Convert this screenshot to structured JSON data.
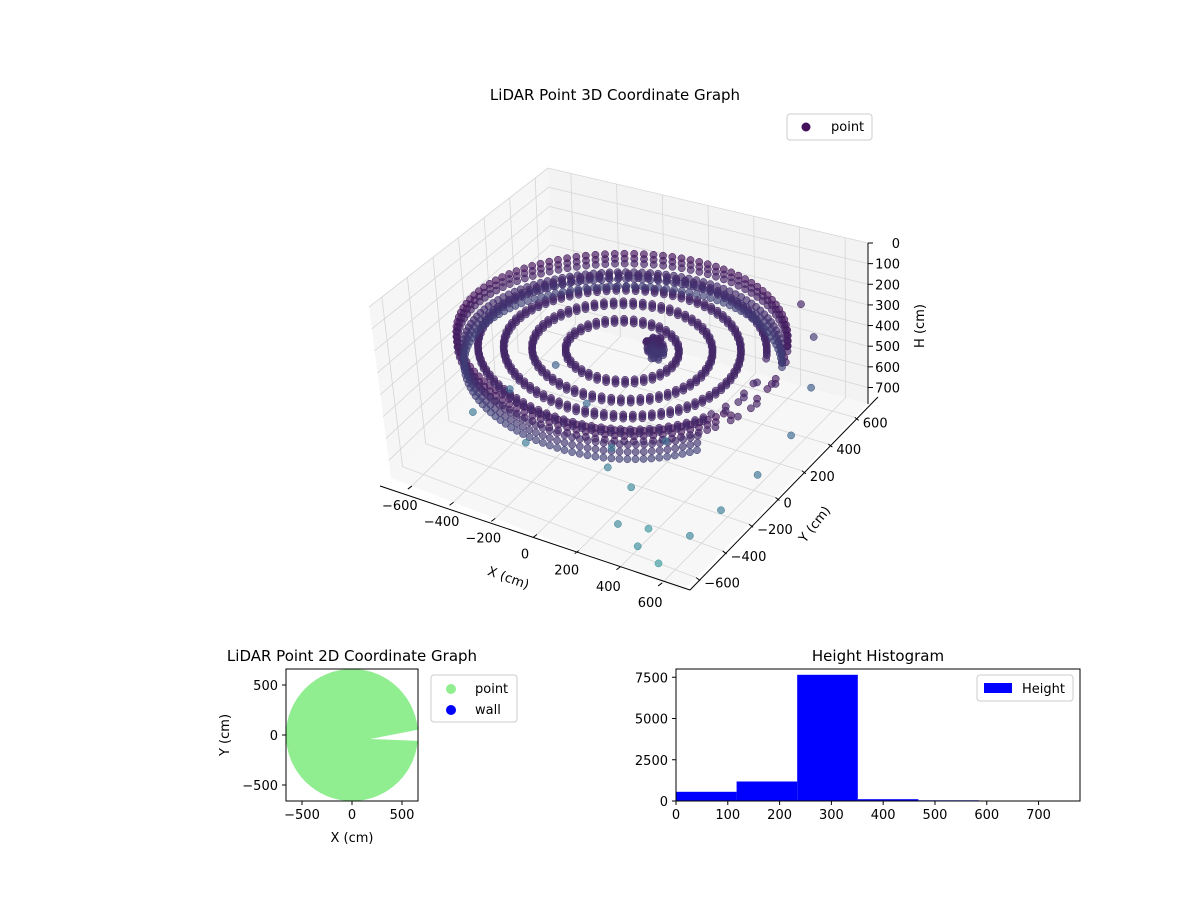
{
  "chart_data": [
    {
      "id": "chart3d",
      "type": "scatter",
      "title": "LiDAR Point 3D Coordinate Graph",
      "xlabel": "X (cm)",
      "ylabel": "Y (cm)",
      "zlabel": "H (cm)",
      "xlim": [
        -700,
        700
      ],
      "ylim": [
        -700,
        700
      ],
      "zlim": [
        0,
        780
      ],
      "z_inverted": true,
      "x_ticks": [
        -600,
        -400,
        -200,
        0,
        200,
        400,
        600
      ],
      "y_ticks": [
        -600,
        -400,
        -200,
        0,
        200,
        400,
        600
      ],
      "z_ticks": [
        0,
        100,
        200,
        300,
        400,
        500,
        600,
        700
      ],
      "grid": true,
      "legend": {
        "position": "top-right",
        "entries": [
          "point"
        ]
      },
      "colormap": "viridis-like by height",
      "colors": {
        "marker_dark": "#44125a",
        "marker_mid": "#3b5f8c",
        "marker_light": "#3b9aa0"
      },
      "series": [
        {
          "name": "point",
          "description_of_shape_note": "",
          "rings": [
            {
              "radius": 640,
              "h_min": 250,
              "h_max": 300,
              "angle_start": 0,
              "angle_end": 360
            },
            {
              "radius": 620,
              "h_min": 330,
              "h_max": 400,
              "angle_start": 30,
              "angle_end": 330
            },
            {
              "radius": 560,
              "h_min": 300,
              "h_max": 320,
              "angle_start": 0,
              "angle_end": 360
            },
            {
              "radius": 460,
              "h_min": 300,
              "h_max": 320,
              "angle_start": 0,
              "angle_end": 360
            },
            {
              "radius": 350,
              "h_min": 300,
              "h_max": 320,
              "angle_start": 0,
              "angle_end": 360
            },
            {
              "radius": 220,
              "h_min": 300,
              "h_max": 320,
              "angle_start": 0,
              "angle_end": 360
            }
          ],
          "outliers": [
            {
              "x": -520,
              "y": -300,
              "h": 620
            },
            {
              "x": -430,
              "y": -150,
              "h": 560
            },
            {
              "x": -330,
              "y": 50,
              "h": 520
            },
            {
              "x": -120,
              "y": -80,
              "h": 560
            },
            {
              "x": 60,
              "y": -200,
              "h": 640
            },
            {
              "x": 220,
              "y": -320,
              "h": 700
            },
            {
              "x": 380,
              "y": -450,
              "h": 760
            },
            {
              "x": 520,
              "y": -600,
              "h": 780
            },
            {
              "x": 430,
              "y": -620,
              "h": 720
            },
            {
              "x": 300,
              "y": -560,
              "h": 700
            },
            {
              "x": 600,
              "y": -500,
              "h": 680
            },
            {
              "x": 640,
              "y": -330,
              "h": 650
            },
            {
              "x": 680,
              "y": -120,
              "h": 600
            },
            {
              "x": 690,
              "y": 120,
              "h": 560
            },
            {
              "x": 640,
              "y": 360,
              "h": 500
            },
            {
              "x": 560,
              "y": 520,
              "h": 380
            },
            {
              "x": 460,
              "y": 600,
              "h": 300
            },
            {
              "x": 250,
              "y": -100,
              "h": 600
            },
            {
              "x": 100,
              "y": -300,
              "h": 660
            },
            {
              "x": -250,
              "y": -350,
              "h": 640
            }
          ],
          "inner_object": {
            "x": 80,
            "y": 120,
            "h_top": 300,
            "h_bottom": 380
          }
        }
      ]
    },
    {
      "id": "chart2d",
      "type": "scatter",
      "title": "LiDAR Point 2D Coordinate Graph",
      "xlabel": "X (cm)",
      "ylabel": "Y (cm)",
      "xlim": [
        -660,
        660
      ],
      "ylim": [
        -660,
        660
      ],
      "x_ticks": [
        -500,
        0,
        500
      ],
      "y_ticks": [
        -500,
        0,
        500
      ],
      "grid": false,
      "legend": {
        "position": "outside-right",
        "entries": [
          "point",
          "wall"
        ]
      },
      "series": [
        {
          "name": "point",
          "color": "#90ee90",
          "disk_radius": 660,
          "center": [
            0,
            0
          ]
        },
        {
          "name": "wall",
          "color": "#0000ff",
          "points": []
        }
      ]
    },
    {
      "id": "hist",
      "type": "bar",
      "title": "Height Histogram",
      "xlabel": "",
      "ylabel": "",
      "xlim": [
        0,
        780
      ],
      "ylim": [
        0,
        8000
      ],
      "x_ticks": [
        0,
        100,
        200,
        300,
        400,
        500,
        600,
        700
      ],
      "y_ticks": [
        0,
        2500,
        5000,
        7500
      ],
      "grid": false,
      "legend": {
        "position": "top-right",
        "entries": [
          "Height"
        ]
      },
      "color": "#0000ff",
      "bins": [
        {
          "from": 0,
          "to": 117,
          "count": 560
        },
        {
          "from": 117,
          "to": 234,
          "count": 1180
        },
        {
          "from": 234,
          "to": 351,
          "count": 7650
        },
        {
          "from": 351,
          "to": 468,
          "count": 110
        },
        {
          "from": 468,
          "to": 585,
          "count": 40
        },
        {
          "from": 585,
          "to": 702,
          "count": 30
        },
        {
          "from": 702,
          "to": 780,
          "count": 20
        }
      ],
      "series": [
        {
          "name": "Height"
        }
      ]
    }
  ]
}
